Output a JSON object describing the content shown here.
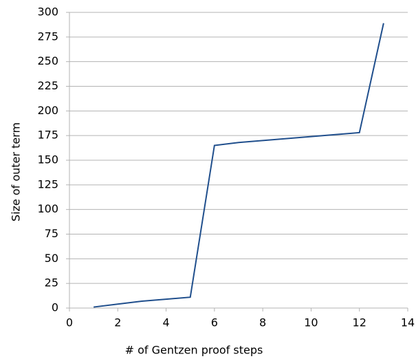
{
  "chart_data": {
    "type": "line",
    "x": [
      1,
      2,
      3,
      4,
      5,
      6,
      7,
      8,
      9,
      10,
      11,
      12,
      13
    ],
    "series": [
      {
        "name": "Size of outer term",
        "color": "#1f4e8c",
        "values": [
          1,
          4,
          7,
          9,
          11,
          165,
          168,
          170,
          172,
          174,
          176,
          178,
          289
        ]
      }
    ],
    "xlabel": "# of Gentzen proof steps",
    "ylabel": "Size of outer term",
    "xlim": [
      0,
      14
    ],
    "xticks": [
      0,
      2,
      4,
      6,
      8,
      10,
      12,
      14
    ],
    "ylim": [
      0,
      300
    ],
    "yticks": [
      0,
      25,
      50,
      75,
      100,
      125,
      150,
      175,
      200,
      225,
      250,
      275,
      300
    ],
    "grid": true
  }
}
